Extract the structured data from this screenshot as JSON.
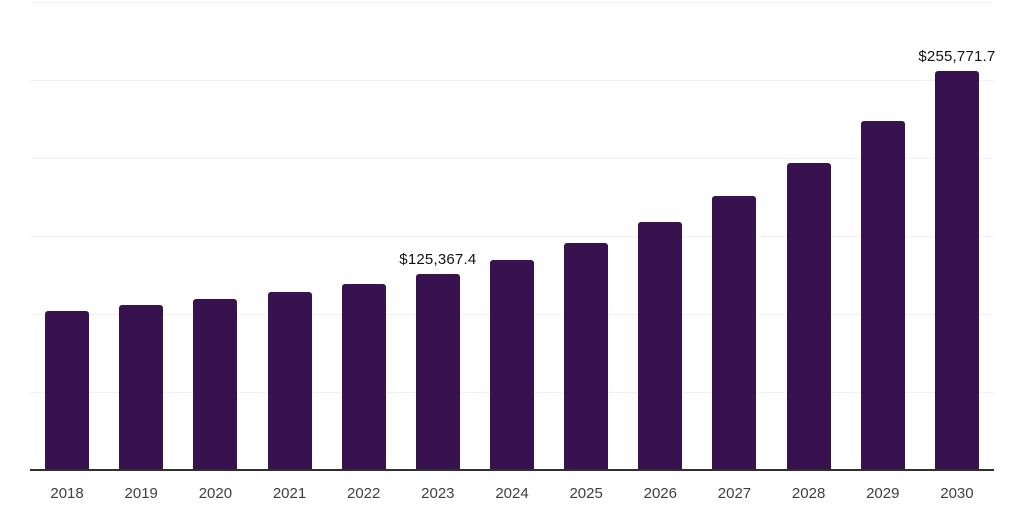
{
  "page": {
    "background_color": "#ffffff"
  },
  "chart_data": {
    "type": "bar",
    "title": "",
    "xlabel": "",
    "ylabel": "",
    "categories": [
      "2018",
      "2019",
      "2020",
      "2021",
      "2022",
      "2023",
      "2024",
      "2025",
      "2026",
      "2027",
      "2028",
      "2029",
      "2030"
    ],
    "values": [
      101900,
      105800,
      109600,
      114100,
      119200,
      125367.4,
      134300,
      145500,
      159000,
      175600,
      196800,
      223700,
      255771.7
    ],
    "value_labels": {
      "2023": "$125,367.4",
      "2030": "$255,771.7"
    },
    "ylim": [
      0,
      300000
    ],
    "gridline_step": 50000,
    "grid": true,
    "legend": false,
    "y_axis_tick_labels_visible": false,
    "bar_color": "#37124e",
    "gridline_color": "#f1f1f1",
    "axis_line_color": "#303030",
    "tick_label_color": "#3f3f3f",
    "value_label_color": "#141414"
  }
}
